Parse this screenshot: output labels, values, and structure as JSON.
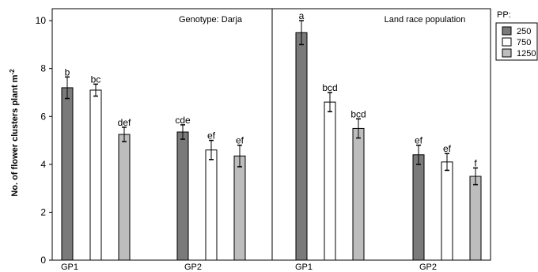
{
  "chart_data": {
    "type": "bar",
    "ylabel": "No. of flower clusters plant m",
    "ylabel_sup": "-2",
    "ylim": [
      0,
      10.5
    ],
    "yticks": [
      0,
      2,
      4,
      6,
      8,
      10
    ],
    "grid": false,
    "legend": {
      "title": "PP:",
      "placement": "top-right",
      "entries": [
        {
          "label": "250",
          "color": "#7a7a7a"
        },
        {
          "label": "750",
          "color": "#ffffff"
        },
        {
          "label": "1250",
          "color": "#bdbdbd"
        }
      ]
    },
    "panels": [
      {
        "title": "Genotype: Darja",
        "groups": [
          {
            "label": "GP1",
            "bars": [
              {
                "series": "250",
                "value": 7.2,
                "err": 0.45,
                "letter": "b"
              },
              {
                "series": "750",
                "value": 7.1,
                "err": 0.25,
                "letter": "bc"
              },
              {
                "series": "1250",
                "value": 5.25,
                "err": 0.3,
                "letter": "def"
              }
            ]
          },
          {
            "label": "GP2",
            "bars": [
              {
                "series": "250",
                "value": 5.35,
                "err": 0.3,
                "letter": "cde"
              },
              {
                "series": "750",
                "value": 4.6,
                "err": 0.4,
                "letter": "ef"
              },
              {
                "series": "1250",
                "value": 4.35,
                "err": 0.45,
                "letter": "ef"
              }
            ]
          }
        ]
      },
      {
        "title": "Land race population",
        "groups": [
          {
            "label": "GP1",
            "bars": [
              {
                "series": "250",
                "value": 9.5,
                "err": 0.5,
                "letter": "a"
              },
              {
                "series": "750",
                "value": 6.6,
                "err": 0.4,
                "letter": "bcd"
              },
              {
                "series": "1250",
                "value": 5.5,
                "err": 0.4,
                "letter": "bcd"
              }
            ]
          },
          {
            "label": "GP2",
            "bars": [
              {
                "series": "250",
                "value": 4.4,
                "err": 0.4,
                "letter": "ef"
              },
              {
                "series": "750",
                "value": 4.1,
                "err": 0.35,
                "letter": "ef"
              },
              {
                "series": "1250",
                "value": 3.5,
                "err": 0.35,
                "letter": "f"
              }
            ]
          }
        ]
      }
    ]
  }
}
